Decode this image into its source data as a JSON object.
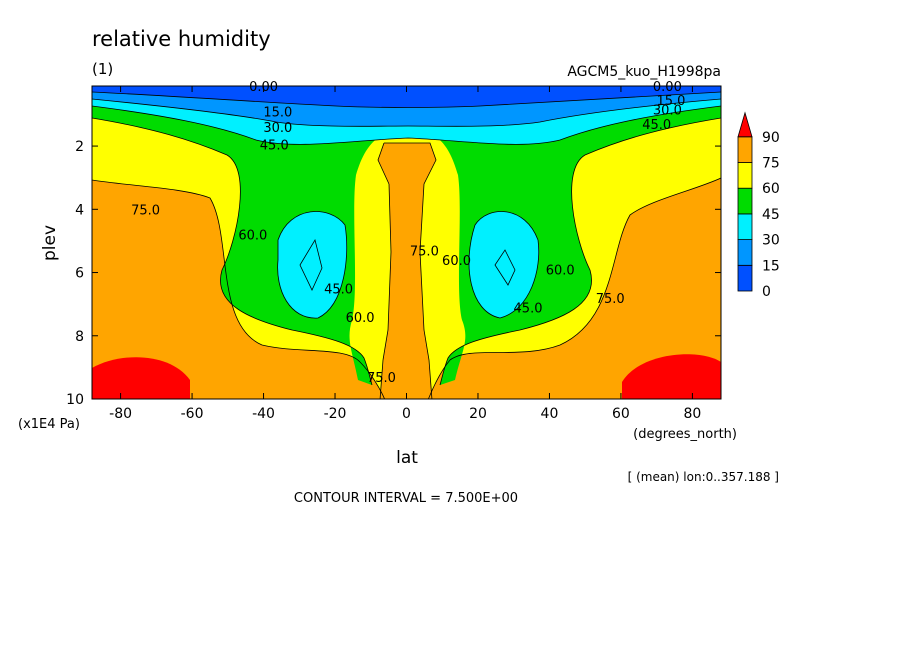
{
  "chart_data": {
    "type": "heatmap",
    "title": "relative humidity",
    "subtitle": "(1)",
    "model": "AGCM5_kuo_H1998pa",
    "xlabel": "lat",
    "xunit": "(degrees_north)",
    "ylabel": "plev",
    "yunit": "(x1E4 Pa)",
    "note": "[ (mean) lon:0..357.188 ]",
    "contour_interval_text": "CONTOUR INTERVAL = 7.500E+00",
    "xlim": [
      -88,
      88
    ],
    "ylim": [
      10,
      0.1
    ],
    "x_ticks": [
      -80,
      -60,
      -40,
      -20,
      0,
      20,
      40,
      60,
      80
    ],
    "x_tick_labels": [
      "-80",
      "-60",
      "-40",
      "-20",
      "0",
      "20",
      "40",
      "60",
      "80"
    ],
    "y_ticks": [
      2,
      4,
      6,
      8,
      10
    ],
    "y_tick_labels": [
      "2",
      "4",
      "6",
      "8",
      "10"
    ],
    "colorbar": {
      "levels": [
        0,
        15,
        30,
        45,
        60,
        75,
        90
      ],
      "labels": [
        "0",
        "15",
        "30",
        "45",
        "60",
        "75",
        "90"
      ],
      "colors": [
        "#0050ff",
        "#0096ff",
        "#00f0ff",
        "#00dc00",
        "#ffff00",
        "#ffa500",
        "#ff0000"
      ]
    },
    "contour_labels": [
      {
        "text": "0.00",
        "x": -40,
        "y": 0.1
      },
      {
        "text": "0.00",
        "x": 73,
        "y": 0.1
      },
      {
        "text": "15.0",
        "x": -36,
        "y": 0.9
      },
      {
        "text": "15.0",
        "x": 74,
        "y": 0.55
      },
      {
        "text": "30.0",
        "x": -36,
        "y": 1.4
      },
      {
        "text": "30.0",
        "x": 73,
        "y": 0.85
      },
      {
        "text": "45.0",
        "x": -37,
        "y": 1.95
      },
      {
        "text": "45.0",
        "x": 70,
        "y": 1.3
      },
      {
        "text": "75.0",
        "x": -73,
        "y": 4.0
      },
      {
        "text": "75.0",
        "x": 57,
        "y": 6.8
      },
      {
        "text": "60.0",
        "x": -43,
        "y": 4.8
      },
      {
        "text": "60.0",
        "x": -13,
        "y": 7.4
      },
      {
        "text": "60.0",
        "x": 14,
        "y": 5.6
      },
      {
        "text": "60.0",
        "x": 43,
        "y": 5.9
      },
      {
        "text": "45.0",
        "x": -19,
        "y": 6.5
      },
      {
        "text": "45.0",
        "x": 34,
        "y": 7.1
      },
      {
        "text": "75.0",
        "x": 5,
        "y": 5.3
      },
      {
        "text": "75.0",
        "x": -7,
        "y": 9.3
      }
    ]
  }
}
